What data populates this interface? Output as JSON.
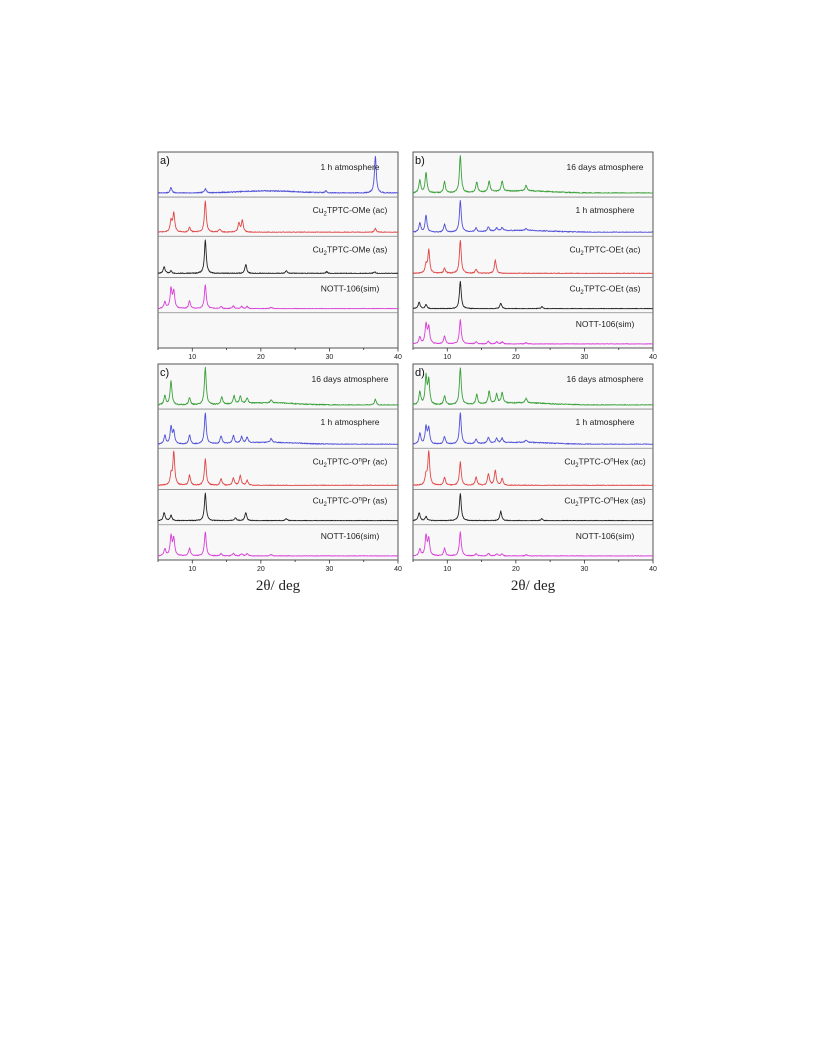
{
  "chart_data": [
    {
      "type": "line",
      "panel": "a)",
      "xlim": [
        5,
        40
      ],
      "xticks": [
        "10",
        "20",
        "30",
        "40"
      ],
      "xlabel": "",
      "series": [
        {
          "name": "1 h atmosphere",
          "color": "#5050d8",
          "x": [
            6.9,
            11.9,
            29.5,
            36.7
          ],
          "values": [
            0.15,
            0.12,
            0.05,
            1.0
          ]
        },
        {
          "name": "Cu2TPTC-OMe (ac)",
          "label_main": "Cu",
          "label_sub": "2",
          "label_rest": "TPTC-OMe (ac)",
          "color": "#e04848",
          "x": [
            6.9,
            7.3,
            9.6,
            11.9,
            14.0,
            16.8,
            17.3,
            36.7
          ],
          "values": [
            0.35,
            0.62,
            0.15,
            1.0,
            0.1,
            0.28,
            0.38,
            0.12
          ]
        },
        {
          "name": "Cu2TPTC-OMe (as)",
          "label_main": "Cu",
          "label_sub": "2",
          "label_rest": "TPTC-OMe (as)",
          "color": "#222222",
          "x": [
            5.9,
            6.9,
            11.9,
            17.8,
            23.7,
            29.6,
            36.6
          ],
          "values": [
            0.2,
            0.08,
            1.0,
            0.28,
            0.08,
            0.05,
            0.04
          ]
        },
        {
          "name": "NOTT-106(sim)",
          "color": "#d840d8",
          "x": [
            6.0,
            6.9,
            7.3,
            9.6,
            11.9,
            14.2,
            16.0,
            17.2,
            18.0,
            21.5
          ],
          "values": [
            0.25,
            0.72,
            0.62,
            0.28,
            0.88,
            0.08,
            0.1,
            0.08,
            0.08,
            0.05
          ]
        }
      ]
    },
    {
      "type": "line",
      "panel": "b)",
      "xlim": [
        5,
        40
      ],
      "xticks": [
        "10",
        "20",
        "30",
        "40"
      ],
      "xlabel": "",
      "series": [
        {
          "name": "16 days atmosphere",
          "color": "#3aa13a",
          "x": [
            6.0,
            6.9,
            9.6,
            11.9,
            14.3,
            16.1,
            18.0,
            21.5
          ],
          "values": [
            0.35,
            0.55,
            0.3,
            1.0,
            0.28,
            0.3,
            0.28,
            0.15
          ]
        },
        {
          "name": "1 h atmosphere",
          "color": "#5050d8",
          "x": [
            6.0,
            6.9,
            9.6,
            11.9,
            14.2,
            16.0,
            17.2,
            18.0,
            21.5
          ],
          "values": [
            0.3,
            0.55,
            0.25,
            1.0,
            0.12,
            0.14,
            0.1,
            0.1,
            0.06
          ]
        },
        {
          "name": "Cu2TPTC-OEt (ac)",
          "label_main": "Cu",
          "label_sub": "2",
          "label_rest": "TPTC-OEt (ac)",
          "color": "#e04848",
          "x": [
            6.9,
            7.3,
            9.6,
            11.9,
            14.2,
            17.0
          ],
          "values": [
            0.25,
            0.7,
            0.15,
            1.0,
            0.12,
            0.4
          ]
        },
        {
          "name": "Cu2TPTC-OEt (as)",
          "label_main": "Cu",
          "label_sub": "2",
          "label_rest": "TPTC-OEt (as)",
          "color": "#222222",
          "x": [
            5.9,
            6.9,
            11.9,
            17.8,
            23.8
          ],
          "values": [
            0.25,
            0.15,
            1.0,
            0.2,
            0.08
          ]
        },
        {
          "name": "NOTT-106(sim)",
          "color": "#d840d8",
          "x": [
            6.0,
            6.9,
            7.3,
            9.6,
            11.9,
            14.2,
            16.0,
            17.2,
            18.0,
            21.5
          ],
          "values": [
            0.25,
            0.72,
            0.62,
            0.28,
            0.88,
            0.08,
            0.1,
            0.08,
            0.08,
            0.05
          ]
        }
      ]
    },
    {
      "type": "line",
      "panel": "c)",
      "xlim": [
        5,
        40
      ],
      "xticks": [
        "10",
        "20",
        "30",
        "40"
      ],
      "xlabel": "2θ/ deg",
      "series": [
        {
          "name": "16 days atmosphere",
          "color": "#3aa13a",
          "x": [
            6.0,
            6.9,
            9.6,
            11.9,
            14.3,
            16.1,
            17.0,
            18.0,
            21.5,
            36.7
          ],
          "values": [
            0.25,
            0.65,
            0.2,
            1.0,
            0.2,
            0.22,
            0.2,
            0.15,
            0.08,
            0.15
          ]
        },
        {
          "name": "1 h atmosphere",
          "color": "#5050d8",
          "x": [
            6.0,
            6.9,
            7.3,
            9.6,
            11.9,
            14.2,
            16.0,
            17.2,
            18.0,
            21.5
          ],
          "values": [
            0.28,
            0.55,
            0.4,
            0.3,
            1.0,
            0.25,
            0.25,
            0.2,
            0.18,
            0.12
          ]
        },
        {
          "name": "Cu2TPTC-OnPr (ac)",
          "label_main": "Cu",
          "label_sub": "2",
          "label_rest": "TPTC-O",
          "label_sup": "n",
          "label_end": "Pr (ac)",
          "color": "#e04848",
          "x": [
            6.9,
            7.3,
            9.6,
            11.9,
            14.2,
            16.0,
            17.0,
            18.0
          ],
          "values": [
            0.3,
            1.0,
            0.3,
            0.8,
            0.2,
            0.22,
            0.3,
            0.15
          ]
        },
        {
          "name": "Cu2TPTC-OnPr (as)",
          "label_main": "Cu",
          "label_sub": "2",
          "label_rest": "TPTC-O",
          "label_sup": "n",
          "label_end": "Pr (as)",
          "color": "#222222",
          "x": [
            5.9,
            6.9,
            11.9,
            16.3,
            17.8,
            23.7
          ],
          "values": [
            0.3,
            0.2,
            1.0,
            0.1,
            0.3,
            0.08
          ]
        },
        {
          "name": "NOTT-106(sim)",
          "color": "#d840d8",
          "x": [
            6.0,
            6.9,
            7.3,
            9.6,
            11.9,
            14.2,
            16.0,
            17.2,
            18.0,
            21.5
          ],
          "values": [
            0.25,
            0.72,
            0.62,
            0.28,
            0.88,
            0.08,
            0.1,
            0.08,
            0.08,
            0.05
          ]
        }
      ]
    },
    {
      "type": "line",
      "panel": "d)",
      "xlim": [
        5,
        40
      ],
      "xticks": [
        "10",
        "20",
        "30",
        "40"
      ],
      "xlabel": "2θ/ deg",
      "series": [
        {
          "name": "16 days atmosphere",
          "color": "#3aa13a",
          "x": [
            6.0,
            6.9,
            7.3,
            9.6,
            11.9,
            14.3,
            16.1,
            17.2,
            18.0,
            21.5
          ],
          "values": [
            0.35,
            0.75,
            0.65,
            0.25,
            1.0,
            0.28,
            0.35,
            0.25,
            0.3,
            0.12
          ]
        },
        {
          "name": "1 h atmosphere",
          "color": "#5050d8",
          "x": [
            6.0,
            6.9,
            7.3,
            9.6,
            11.9,
            14.2,
            16.0,
            17.2,
            18.0,
            21.5
          ],
          "values": [
            0.35,
            0.55,
            0.5,
            0.25,
            1.0,
            0.15,
            0.2,
            0.15,
            0.15,
            0.08
          ]
        },
        {
          "name": "Cu2TPTC-OnHex (ac)",
          "label_main": "Cu",
          "label_sub": "2",
          "label_rest": "TPTC-O",
          "label_sup": "n",
          "label_end": "Hex (ac)",
          "color": "#e04848",
          "x": [
            6.9,
            7.3,
            9.6,
            11.9,
            14.2,
            16.0,
            17.0,
            18.0
          ],
          "values": [
            0.3,
            1.0,
            0.25,
            0.7,
            0.25,
            0.35,
            0.45,
            0.2
          ]
        },
        {
          "name": "Cu2TPTC-OnHex (as)",
          "label_main": "Cu",
          "label_sub": "2",
          "label_rest": "TPTC-O",
          "label_sup": "n",
          "label_end": "Hex (as)",
          "color": "#222222",
          "x": [
            5.9,
            6.9,
            11.9,
            17.8,
            23.8
          ],
          "values": [
            0.3,
            0.15,
            1.0,
            0.35,
            0.08
          ]
        },
        {
          "name": "NOTT-106(sim)",
          "color": "#d840d8",
          "x": [
            6.0,
            6.9,
            7.3,
            9.6,
            11.9,
            14.2,
            16.0,
            17.2,
            18.0,
            21.5
          ],
          "values": [
            0.25,
            0.72,
            0.62,
            0.28,
            0.88,
            0.08,
            0.1,
            0.08,
            0.08,
            0.05
          ]
        }
      ]
    }
  ]
}
